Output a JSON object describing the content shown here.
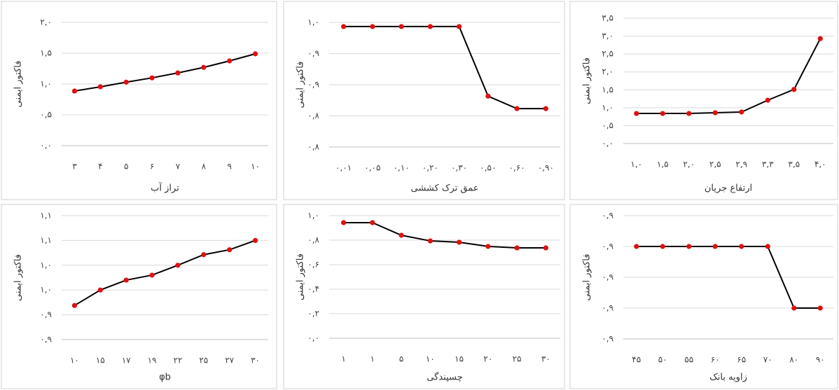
{
  "chart_data": [
    {
      "type": "line",
      "x_label": "تراز آب",
      "y_label": "فاکتور ایمنی",
      "categories": [
        "۳",
        "۴",
        "۵",
        "۶",
        "۷",
        "۸",
        "۹",
        "۱۰"
      ],
      "values": [
        0.886,
        0.955,
        1.03,
        1.1,
        1.18,
        1.27,
        1.375,
        1.49
      ],
      "color": "#000000",
      "marker_color": "#e01010",
      "grid": true,
      "ylim": [
        0,
        2.0
      ],
      "yticks": [
        {
          "value": 0,
          "label": "۰,۰"
        },
        {
          "value": 0.5,
          "label": "۰,۵"
        },
        {
          "value": 1.0,
          "label": "۱,۰"
        },
        {
          "value": 1.5,
          "label": "۱,۵"
        },
        {
          "value": 2.0,
          "label": "۲,۰"
        }
      ]
    },
    {
      "type": "line",
      "x_label": "عمق ترک کششی",
      "y_label": "فاکتور ایمنی",
      "categories": [
        "۰,۰۱",
        "۰,۰۵",
        "۰,۱۰",
        "۰,۲۰",
        "۰,۳۰",
        "۰,۵۰",
        "۰,۶۰",
        "۰,۹۰"
      ],
      "values": [
        0.992,
        0.992,
        0.992,
        0.992,
        0.992,
        0.858,
        0.834,
        0.834
      ],
      "color": "#000000",
      "marker_color": "#e01010",
      "grid": true,
      "ylim": [
        0.76,
        1.0
      ],
      "yticks": [
        {
          "value": 0.76,
          "label": "۰,۸"
        },
        {
          "value": 0.82,
          "label": "۰,۸"
        },
        {
          "value": 0.88,
          "label": "۰,۹"
        },
        {
          "value": 0.94,
          "label": "۰,۹"
        },
        {
          "value": 1.0,
          "label": "۱,۰"
        }
      ]
    },
    {
      "type": "line",
      "x_label": "ارتفاع جریان",
      "y_label": "فاکتور ایمنی",
      "categories": [
        "۱,۰",
        "۱,۵",
        "۲,۰",
        "۲,۵",
        "۲,۹",
        "۳,۳",
        "۳,۵",
        "۴,۰"
      ],
      "values": [
        0.84,
        0.84,
        0.84,
        0.86,
        0.88,
        1.21,
        1.51,
        2.93
      ],
      "color": "#000000",
      "marker_color": "#e01010",
      "grid": true,
      "ylim": [
        0,
        3.5
      ],
      "yticks": [
        {
          "value": 0,
          "label": "۰,۰"
        },
        {
          "value": 0.5,
          "label": "۰,۵"
        },
        {
          "value": 1.0,
          "label": "۱,۰"
        },
        {
          "value": 1.5,
          "label": "۱,۵"
        },
        {
          "value": 2.0,
          "label": "۲,۰"
        },
        {
          "value": 2.5,
          "label": "۲,۵"
        },
        {
          "value": 3.0,
          "label": "۳,۰"
        },
        {
          "value": 3.5,
          "label": "۳,۵"
        }
      ]
    },
    {
      "type": "line",
      "x_label": "φb",
      "y_label": "فاکتور ایمنی",
      "categories": [
        "۱۰",
        "۱۵",
        "۱۷",
        "۱۹",
        "۲۲",
        "۲۵",
        "۲۷",
        "۳۰"
      ],
      "values": [
        0.955,
        0.98,
        0.996,
        1.004,
        1.02,
        1.037,
        1.045,
        1.06
      ],
      "color": "#000000",
      "marker_color": "#e01010",
      "grid": true,
      "ylim": [
        0.9,
        1.1
      ],
      "yticks": [
        {
          "value": 0.9,
          "label": "۰,۹"
        },
        {
          "value": 0.94,
          "label": "۰,۹"
        },
        {
          "value": 0.98,
          "label": "۱,۰"
        },
        {
          "value": 1.02,
          "label": "۱,۰"
        },
        {
          "value": 1.06,
          "label": "۱,۱"
        },
        {
          "value": 1.1,
          "label": "۱,۱"
        }
      ]
    },
    {
      "type": "line",
      "x_label": "چسپندگی",
      "y_label": "فاکتور ایمنی",
      "categories": [
        "۱",
        "۱",
        "۵",
        "۱۰",
        "۱۵",
        "۲۰",
        "۲۵",
        "۳۰"
      ],
      "values": [
        0.943,
        0.943,
        0.84,
        0.794,
        0.783,
        0.749,
        0.737,
        0.737
      ],
      "color": "#000000",
      "marker_color": "#e01010",
      "grid": true,
      "ylim": [
        0,
        1.0
      ],
      "yticks": [
        {
          "value": 0,
          "label": "۰,۰"
        },
        {
          "value": 0.2,
          "label": "۰,۲"
        },
        {
          "value": 0.4,
          "label": "۰,۴"
        },
        {
          "value": 0.6,
          "label": "۰,۶"
        },
        {
          "value": 0.8,
          "label": "۰,۸"
        },
        {
          "value": 1.0,
          "label": "۱,۰"
        }
      ]
    },
    {
      "type": "line",
      "x_label": "زاویه بانک",
      "y_label": "فاکتور ایمنی",
      "categories": [
        "۴۵",
        "۵۰",
        "۵۵",
        "۶۰",
        "۶۵",
        "۷۰",
        "۸۰",
        "۹۰"
      ],
      "values": [
        0.89,
        0.89,
        0.89,
        0.89,
        0.89,
        0.89,
        0.87,
        0.87
      ],
      "color": "#000000",
      "marker_color": "#e01010",
      "grid": true,
      "ylim": [
        0.86,
        0.9
      ],
      "yticks": [
        {
          "value": 0.86,
          "label": "۰,۹"
        },
        {
          "value": 0.87,
          "label": "۰,۹"
        },
        {
          "value": 0.88,
          "label": "۰,۹"
        },
        {
          "value": 0.89,
          "label": "۰,۹"
        },
        {
          "value": 0.9,
          "label": "۰,۹"
        }
      ]
    }
  ]
}
